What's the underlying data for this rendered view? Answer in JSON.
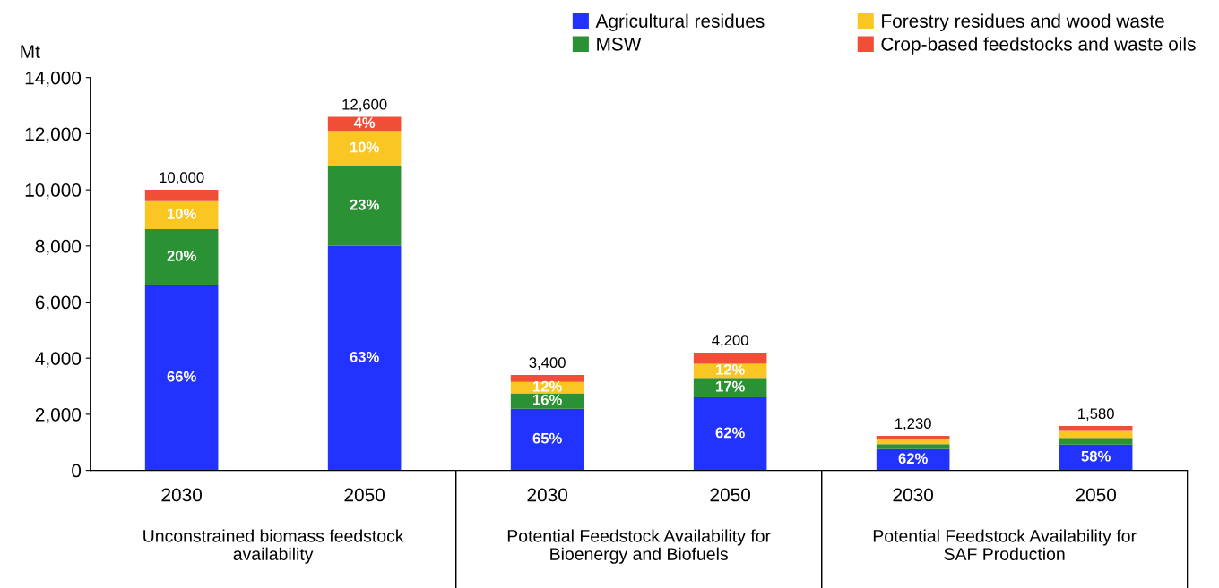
{
  "chart_data": {
    "type": "bar",
    "stacked": true,
    "ylabel": "Mt",
    "categories": [
      "2030",
      "2050",
      "2030",
      "2050",
      "2030",
      "2050"
    ],
    "series": [
      {
        "name": "Agricultural residues",
        "color": "#2233ff",
        "values": [
          6600,
          8000,
          2200,
          2600,
          760,
          920
        ]
      },
      {
        "name": "MSW",
        "color": "#2a9134",
        "values": [
          2000,
          2850,
          550,
          700,
          180,
          240
        ]
      },
      {
        "name": "Forestry residues and wood waste",
        "color": "#f9c623",
        "values": [
          1000,
          1250,
          400,
          500,
          170,
          250
        ]
      },
      {
        "name": "Crop-based feedstocks and waste oils",
        "color": "#f04e37",
        "values": [
          400,
          500,
          250,
          400,
          120,
          170
        ]
      }
    ],
    "totals": [
      "10,000",
      "12,600",
      "3,400",
      "4,200",
      "1,230",
      "1,580"
    ],
    "annotations": [
      "Unconstrained biomass feedstock\navailability",
      "Potential Feedstock Availability for\nBioenergy and Biofuels",
      "Potential Feedstock Availability for\nSAF Production",
      "66%",
      "20%",
      "10%",
      "63%",
      "23%",
      "10%",
      "4%",
      "65%",
      "16%",
      "12%",
      "62%",
      "17%",
      "12%",
      "62%",
      "58%"
    ],
    "ylim": [
      0,
      14000
    ],
    "yticks": [
      {
        "value": 0,
        "label": "0"
      },
      {
        "value": 2000,
        "label": "2,000"
      },
      {
        "value": 4000,
        "label": "4,000"
      },
      {
        "value": 6000,
        "label": "6,000"
      },
      {
        "value": 8000,
        "label": "8,000"
      },
      {
        "value": 10000,
        "label": "10,000"
      },
      {
        "value": 12000,
        "label": "12,000"
      },
      {
        "value": 14000,
        "label": "14,000"
      }
    ],
    "grid": false,
    "legend": "top"
  }
}
